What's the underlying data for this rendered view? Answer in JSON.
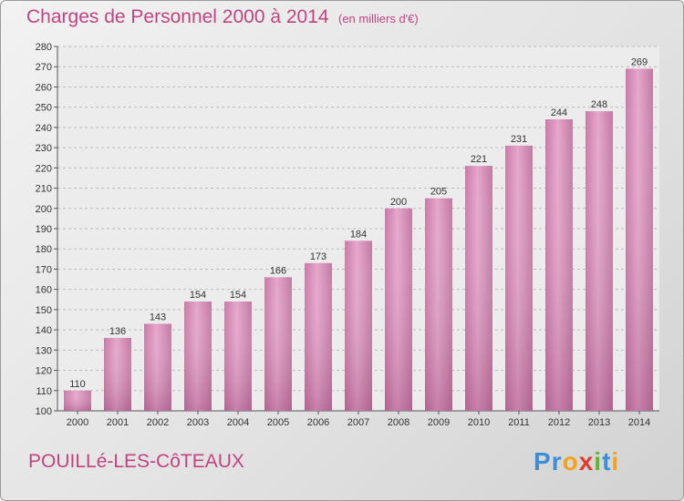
{
  "header": {
    "title": "Charges de Personnel 2000 à 2014",
    "unit": "(en milliers d'€)"
  },
  "footer": {
    "town": "POUILLé-LES-CôTEAUX",
    "logo_letters": [
      {
        "ch": "P",
        "color": "#3a8fd6"
      },
      {
        "ch": "r",
        "color": "#3a8fd6"
      },
      {
        "ch": "o",
        "color": "#f3a21b"
      },
      {
        "ch": "x",
        "color": "#e03b2e"
      },
      {
        "ch": "i",
        "color": "#5cb82a"
      },
      {
        "ch": "t",
        "color": "#3a8fd6"
      },
      {
        "ch": "i",
        "color": "#f3a21b"
      }
    ]
  },
  "chart_data": {
    "type": "bar",
    "categories": [
      "2000",
      "2001",
      "2002",
      "2003",
      "2004",
      "2005",
      "2006",
      "2007",
      "2008",
      "2009",
      "2010",
      "2011",
      "2012",
      "2013",
      "2014"
    ],
    "values": [
      110,
      136,
      143,
      154,
      154,
      166,
      173,
      184,
      200,
      205,
      221,
      231,
      244,
      248,
      269
    ],
    "ylim": [
      100,
      280
    ],
    "yticks": [
      100,
      110,
      120,
      130,
      140,
      150,
      160,
      170,
      180,
      190,
      200,
      210,
      220,
      230,
      240,
      250,
      260,
      270,
      280
    ],
    "grid": "horizontal-dashed",
    "bar_color": "#d98ab5"
  }
}
